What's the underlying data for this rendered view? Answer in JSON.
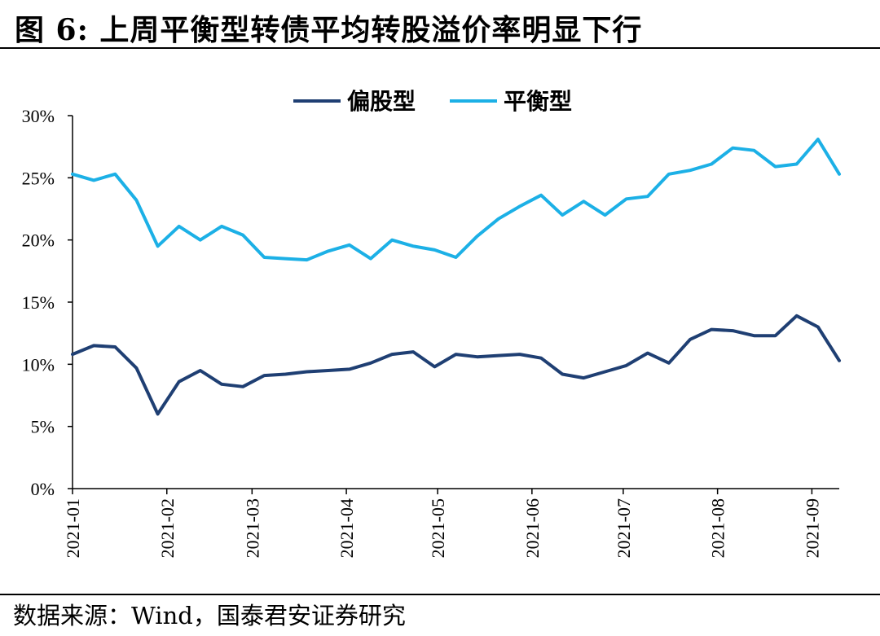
{
  "title": "图 6:  上周平衡型转债平均转股溢价率明显下行",
  "source": "数据来源：Wind，国泰君安证券研究",
  "chart_data": {
    "type": "line",
    "title": "图 6:  上周平衡型转债平均转股溢价率明显下行",
    "xlabel": "",
    "ylabel": "",
    "ylim": [
      0,
      30
    ],
    "y_ticks": [
      "0%",
      "5%",
      "10%",
      "15%",
      "20%",
      "25%",
      "30%"
    ],
    "y_tick_values": [
      0,
      5,
      10,
      15,
      20,
      25,
      30
    ],
    "x_ticks": [
      "2021-01",
      "2021-02",
      "2021-03",
      "2021-04",
      "2021-05",
      "2021-06",
      "2021-07",
      "2021-08",
      "2021-09"
    ],
    "x_start": "2021-01-01",
    "x_step_days": 7,
    "grid": false,
    "legend_position": "top-center",
    "series": [
      {
        "name": "偏股型",
        "color": "#1f3f73",
        "values": [
          10.8,
          11.5,
          11.4,
          9.7,
          6.0,
          8.6,
          9.5,
          8.4,
          8.2,
          9.1,
          9.2,
          9.4,
          9.5,
          9.6,
          10.1,
          10.8,
          11.0,
          9.8,
          10.8,
          10.6,
          10.7,
          10.8,
          10.5,
          9.2,
          8.9,
          9.4,
          9.9,
          10.9,
          10.1,
          12.0,
          12.8,
          12.7,
          12.3,
          12.3,
          13.9,
          13.0,
          10.3
        ]
      },
      {
        "name": "平衡型",
        "color": "#1cb0e6",
        "values": [
          25.3,
          24.8,
          25.3,
          23.2,
          19.5,
          21.1,
          20.0,
          21.1,
          20.4,
          18.6,
          18.5,
          18.4,
          19.1,
          19.6,
          18.5,
          20.0,
          19.5,
          19.2,
          18.6,
          20.3,
          21.7,
          22.7,
          23.6,
          22.0,
          23.1,
          22.0,
          23.3,
          23.5,
          25.3,
          25.6,
          26.1,
          27.4,
          27.2,
          25.9,
          26.1,
          28.1,
          25.3
        ]
      }
    ]
  }
}
